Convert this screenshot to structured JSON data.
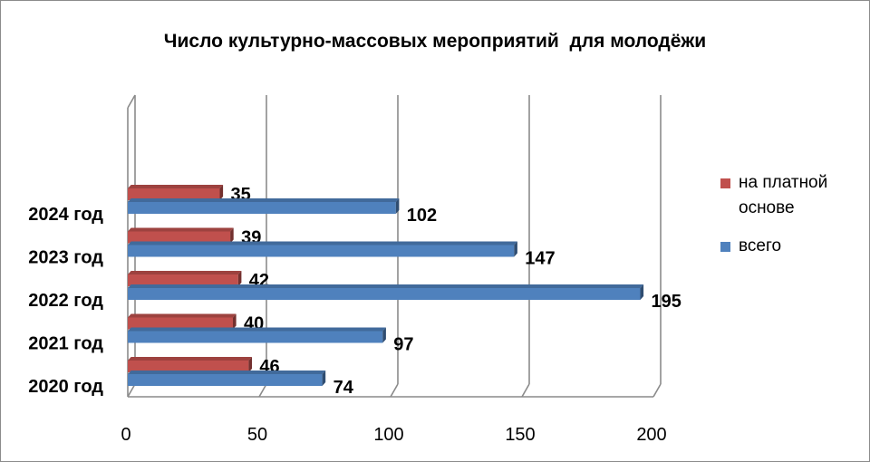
{
  "chart_data": {
    "type": "bar",
    "orientation": "horizontal",
    "title": "Число культурно-массовых мероприятий  для молодёжи",
    "categories": [
      "2020 год",
      "2021 год",
      "2022 год",
      "2023 год",
      "2024 год"
    ],
    "series": [
      {
        "name": "на платной основе",
        "values": [
          46,
          40,
          42,
          39,
          35
        ],
        "color": "#c0504d"
      },
      {
        "name": "всего",
        "values": [
          74,
          97,
          195,
          147,
          102
        ],
        "color": "#4f81bd"
      }
    ],
    "xlim": [
      0,
      200
    ],
    "xticks": [
      "0",
      "50",
      "100",
      "150",
      "200"
    ],
    "grid": true,
    "legend_position": "right",
    "style": "3d"
  }
}
